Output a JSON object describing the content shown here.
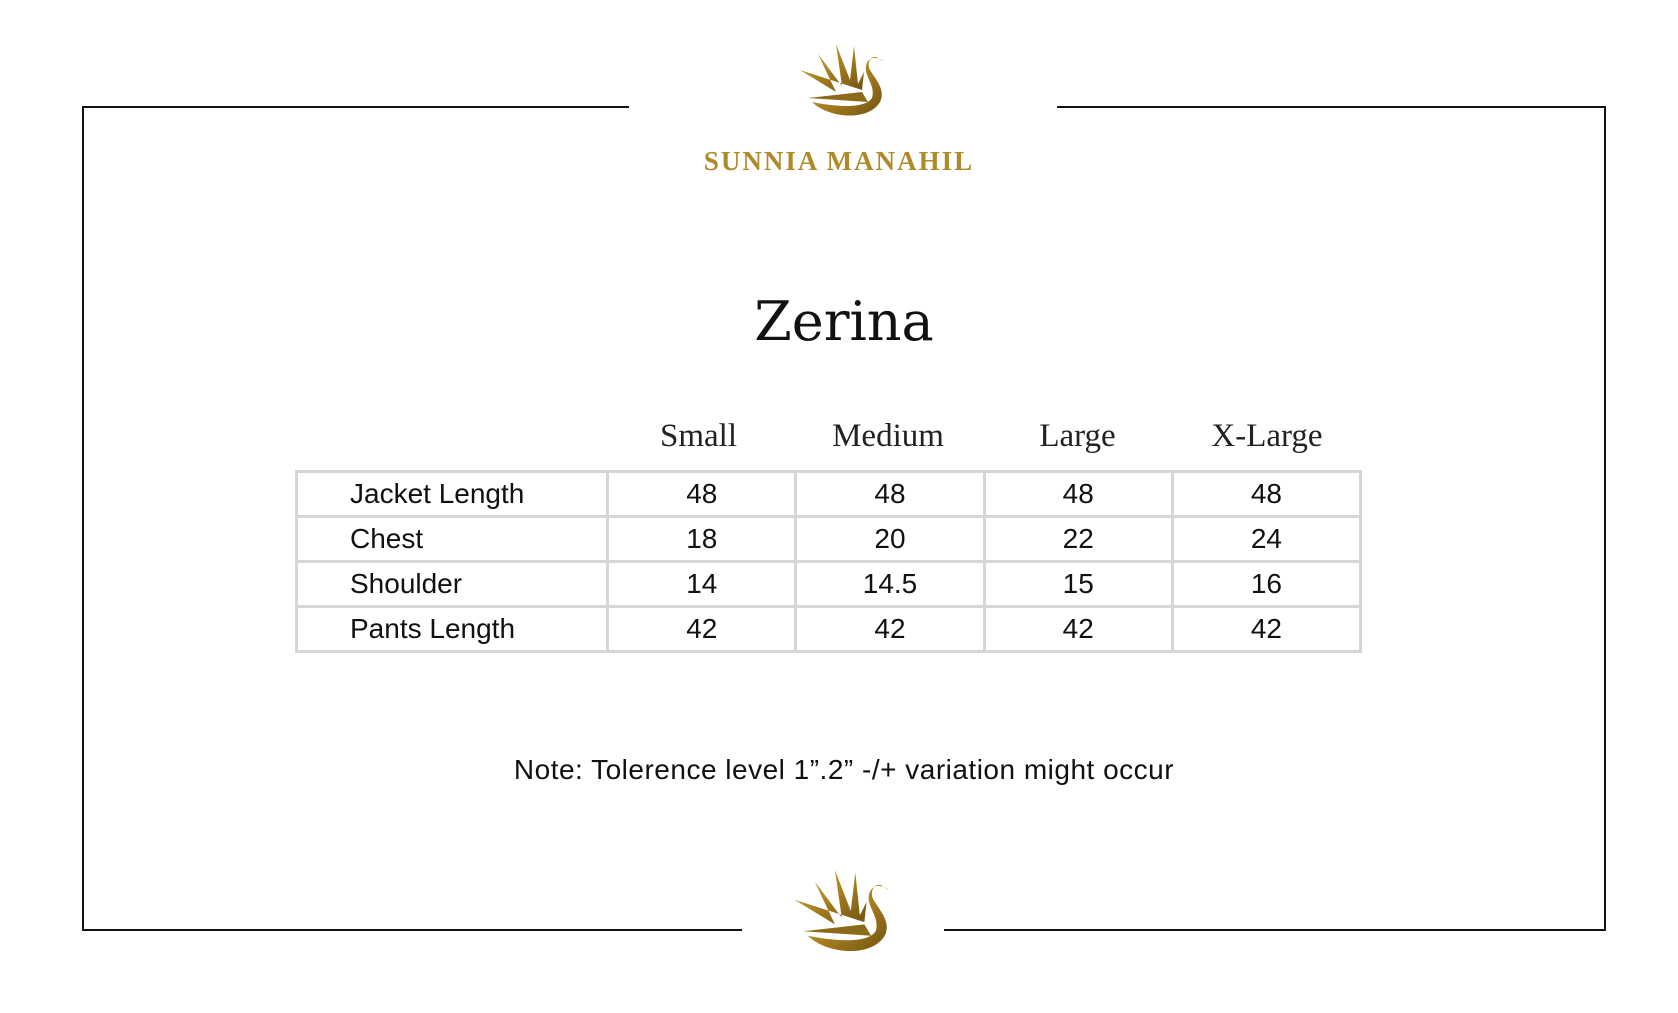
{
  "brand": {
    "name": "SUNNIA MANAHIL",
    "logo": "swan-logo-icon",
    "color": "#b08a2a"
  },
  "title": "Zerina",
  "table": {
    "columns": [
      "Small",
      "Medium",
      "Large",
      "X-Large"
    ],
    "rows": [
      {
        "label": "Jacket Length",
        "values": [
          "48",
          "48",
          "48",
          "48"
        ]
      },
      {
        "label": "Chest",
        "values": [
          "18",
          "20",
          "22",
          "24"
        ]
      },
      {
        "label": "Shoulder",
        "values": [
          "14",
          "14.5",
          "15",
          "16"
        ]
      },
      {
        "label": "Pants Length",
        "values": [
          "42",
          "42",
          "42",
          "42"
        ]
      }
    ]
  },
  "note": "Note: Tolerence level 1”.2” -/+ variation might occur"
}
